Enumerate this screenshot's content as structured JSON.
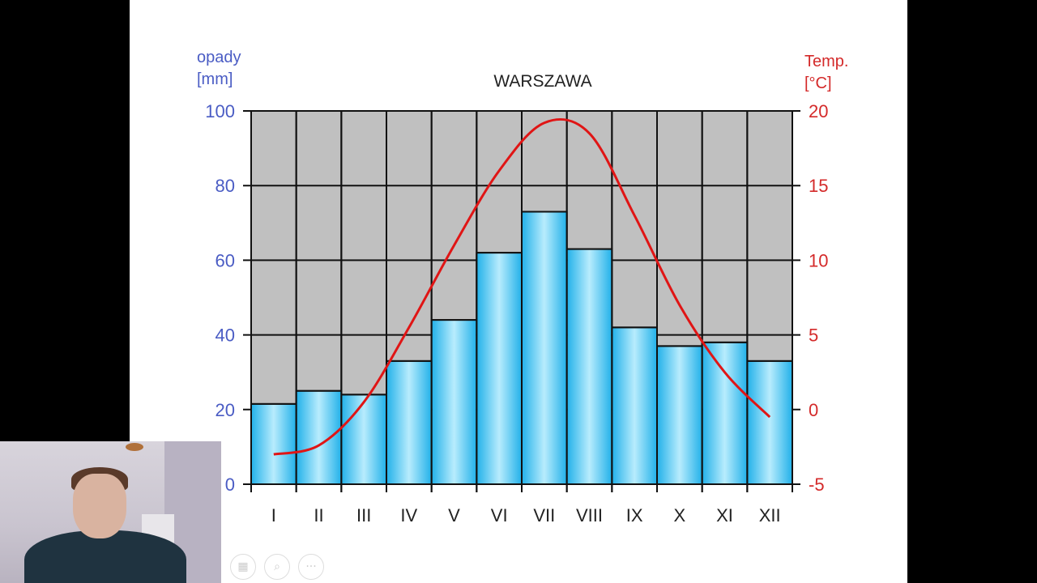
{
  "chart_data": {
    "type": "bar+line",
    "title": "WARSZAWA",
    "categories": [
      "I",
      "II",
      "III",
      "IV",
      "V",
      "VI",
      "VII",
      "VIII",
      "IX",
      "X",
      "XI",
      "XII"
    ],
    "series": [
      {
        "name": "opady [mm]",
        "type": "bar",
        "axis": "left",
        "color": "#4fc8f2",
        "values": [
          21.5,
          25,
          24,
          33,
          44,
          62,
          73,
          63,
          42,
          37,
          38,
          33
        ]
      },
      {
        "name": "Temp. [°C]",
        "type": "line",
        "axis": "right",
        "color": "#e01515",
        "values": [
          -3,
          -2.4,
          0.5,
          5.5,
          11,
          16,
          19.2,
          18.5,
          13,
          7,
          2.5,
          -0.5
        ]
      }
    ],
    "ylabel_left": "opady [mm]",
    "ylabel_right": "Temp. [°C]",
    "ylim_left": [
      0,
      100
    ],
    "ylim_right": [
      -5,
      20
    ],
    "yticks_left": [
      0,
      20,
      40,
      60,
      80,
      100
    ],
    "yticks_right": [
      -5,
      0,
      5,
      10,
      15,
      20
    ],
    "grid": true,
    "plot_background": "#c0c0c0"
  },
  "labels": {
    "title": "WARSZAWA",
    "left_axis_line1": "opady",
    "left_axis_line2": "[mm]",
    "right_axis_line1": "Temp.",
    "right_axis_line2": "[°C]"
  },
  "colors": {
    "left_axis": "#4a5cc4",
    "right_axis": "#d42a2a",
    "bar": "#4fc8f2",
    "line": "#e01515"
  },
  "controls": {
    "slides_icon": "▦",
    "zoom_icon": "⌕",
    "more_icon": "···"
  }
}
